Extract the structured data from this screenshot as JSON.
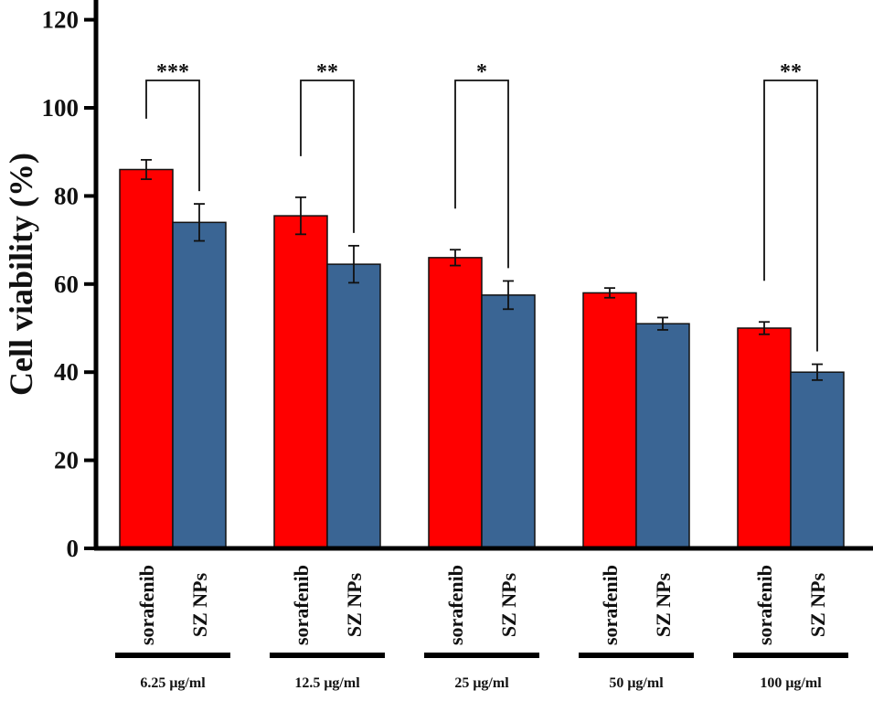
{
  "chart_data": {
    "type": "bar",
    "ylabel": "Cell viability (%)",
    "ylim": [
      0,
      120
    ],
    "yticks": [
      "0",
      "20",
      "40",
      "60",
      "80",
      "100",
      "120"
    ],
    "categories": [
      "6.25 μg/ml",
      "12.5 μg/ml",
      "25 μg/ml",
      "50 μg/ml",
      "100 μg/ml"
    ],
    "series": [
      {
        "name": "sorafenib",
        "color": "#ff0000",
        "values": [
          86,
          75.5,
          66,
          58,
          50
        ],
        "errors": [
          2.2,
          4.2,
          1.8,
          1.1,
          1.4
        ]
      },
      {
        "name": "SZ NPs",
        "color": "#3a6594",
        "values": [
          74,
          64.5,
          57.5,
          51,
          40
        ],
        "errors": [
          4.2,
          4.2,
          3.2,
          1.4,
          1.8
        ]
      }
    ],
    "significance": [
      {
        "category_index": 0,
        "label": "***"
      },
      {
        "category_index": 1,
        "label": "**"
      },
      {
        "category_index": 2,
        "label": "*"
      },
      {
        "category_index": 4,
        "label": "**"
      }
    ],
    "grid": false,
    "legend": "none"
  }
}
